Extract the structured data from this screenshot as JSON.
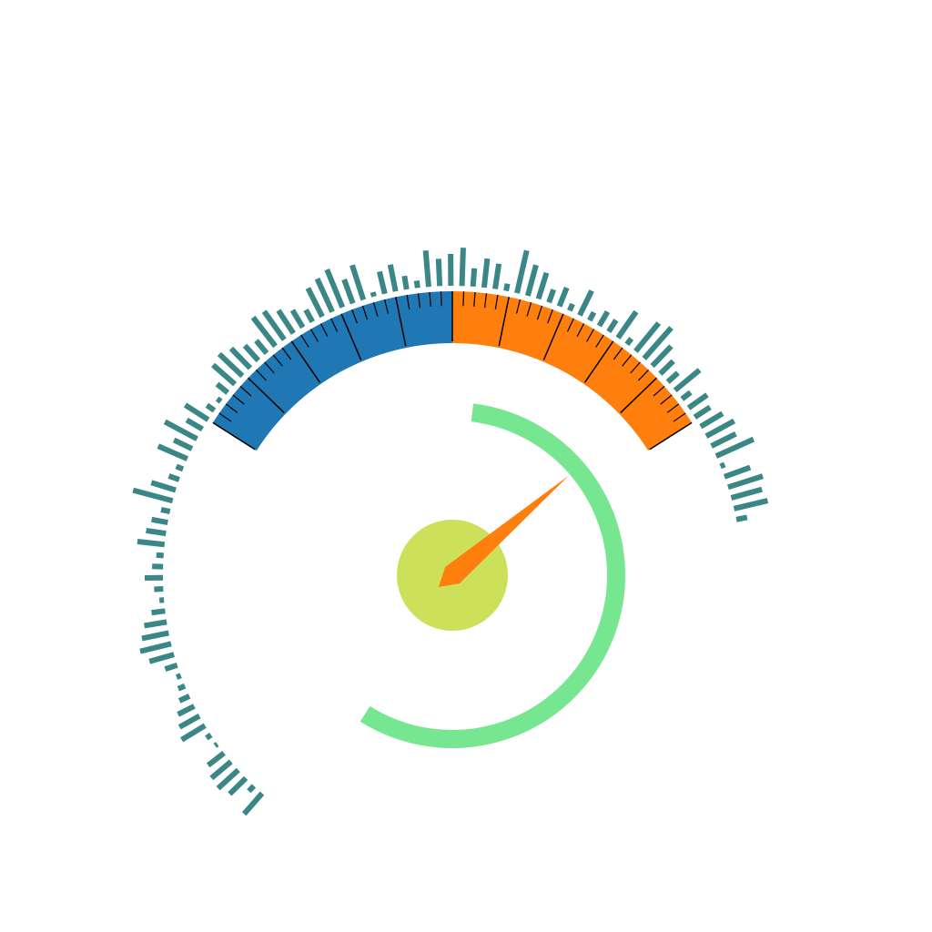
{
  "chart_data": {
    "type": "gauge",
    "gauge": {
      "min": 0,
      "max": 100,
      "value": 93,
      "needle_color": "#ff7f0e",
      "bands": [
        {
          "from": 0,
          "to": 50,
          "color": "#1f77b4"
        },
        {
          "from": 50,
          "to": 100,
          "color": "#ff7f0e"
        }
      ],
      "major_ticks": [
        0,
        10,
        20,
        30,
        40,
        50,
        60,
        70,
        80,
        90,
        100
      ],
      "minor_ticks": [
        2,
        4,
        6,
        8,
        12,
        14,
        16,
        18,
        22,
        24,
        26,
        28,
        32,
        34,
        36,
        38,
        42,
        44,
        46,
        48,
        52,
        54,
        56,
        58,
        62,
        64,
        66,
        68,
        72,
        74,
        76,
        78,
        82,
        84,
        86,
        88,
        92,
        94,
        96,
        98
      ]
    },
    "ring": {
      "value": 57,
      "max": 100,
      "color": "#77e691"
    },
    "hub_color": "#cde05a",
    "radial_bars": {
      "color": "#3b8686",
      "ylim": [
        0,
        60
      ],
      "values": [
        30,
        8,
        25,
        30,
        28,
        22,
        3,
        6,
        30,
        25,
        20,
        12,
        8,
        5,
        14,
        28,
        35,
        30,
        25,
        15,
        5,
        10,
        20,
        12,
        8,
        30,
        22,
        18,
        10,
        45,
        28,
        12,
        8,
        35,
        22,
        40,
        20,
        30,
        10,
        5,
        15,
        32,
        35,
        30,
        22,
        18,
        40,
        38,
        30,
        22,
        15,
        35,
        40,
        45,
        28,
        40,
        5,
        25,
        30,
        15,
        8,
        40,
        30,
        35,
        42,
        20,
        32,
        28,
        8,
        48,
        35,
        30,
        15,
        22,
        8,
        30,
        10,
        18,
        15,
        35,
        8,
        40,
        45,
        30,
        20,
        15,
        35,
        12,
        25,
        20,
        28,
        35,
        30,
        45,
        5,
        30,
        40,
        35,
        38,
        12
      ]
    }
  }
}
